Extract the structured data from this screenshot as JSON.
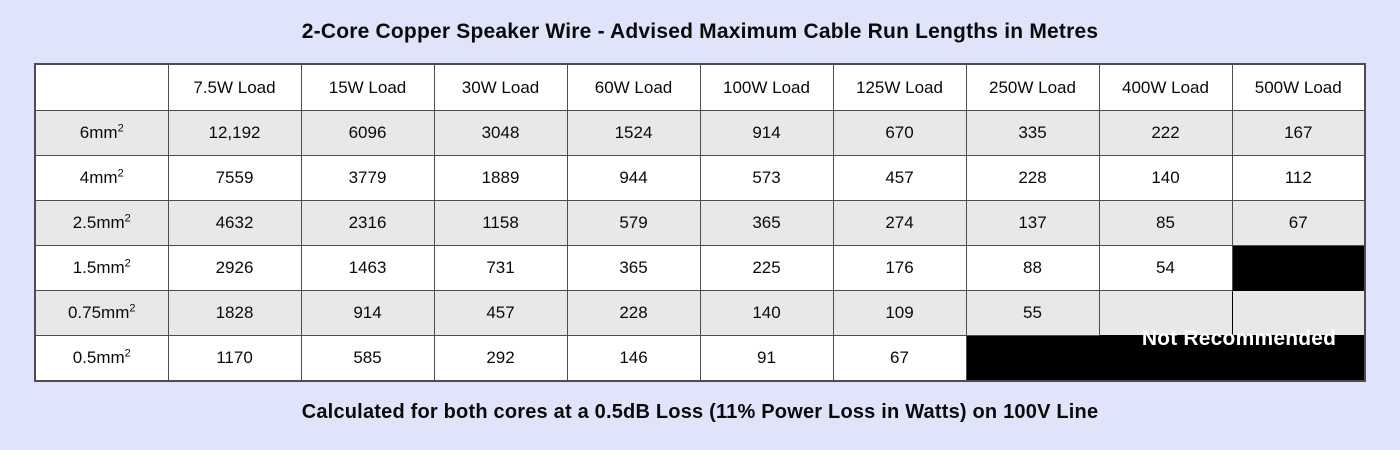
{
  "colors": {
    "page_background": "#E0E4FB",
    "shaded_row": "#E8E8E8",
    "plain_row": "#FFFFFF",
    "grid_border": "#4D4D4D",
    "blackout_fill": "#000000",
    "blackout_text": "#FFFFFF",
    "text": "#0A0A0A"
  },
  "chart_data": {
    "type": "table",
    "title": "2-Core Copper Speaker Wire - Advised Maximum Cable Run Lengths in Metres",
    "footnote": "Calculated for both cores at a 0.5dB Loss (11% Power Loss in Watts) on 100V Line",
    "not_recommended_label": "Not Recommended",
    "column_headers": [
      "",
      "7.5W Load",
      "15W Load",
      "30W Load",
      "60W Load",
      "100W Load",
      "125W Load",
      "250W Load",
      "400W Load",
      "500W Load"
    ],
    "rows": [
      {
        "label": "6mm",
        "label_sup": "2",
        "values": [
          "12,192",
          "6096",
          "3048",
          "1524",
          "914",
          "670",
          "335",
          "222",
          "167"
        ]
      },
      {
        "label": "4mm",
        "label_sup": "2",
        "values": [
          "7559",
          "3779",
          "1889",
          "944",
          "573",
          "457",
          "228",
          "140",
          "112"
        ]
      },
      {
        "label": "2.5mm",
        "label_sup": "2",
        "values": [
          "4632",
          "2316",
          "1158",
          "579",
          "365",
          "274",
          "137",
          "85",
          "67"
        ]
      },
      {
        "label": "1.5mm",
        "label_sup": "2",
        "values": [
          "2926",
          "1463",
          "731",
          "365",
          "225",
          "176",
          "88",
          "54",
          null
        ]
      },
      {
        "label": "0.75mm",
        "label_sup": "2",
        "values": [
          "1828",
          "914",
          "457",
          "228",
          "140",
          "109",
          "55",
          null,
          null
        ]
      },
      {
        "label": "0.5mm",
        "label_sup": "2",
        "values": [
          "1170",
          "585",
          "292",
          "146",
          "91",
          "67",
          null,
          null,
          null
        ]
      }
    ]
  }
}
